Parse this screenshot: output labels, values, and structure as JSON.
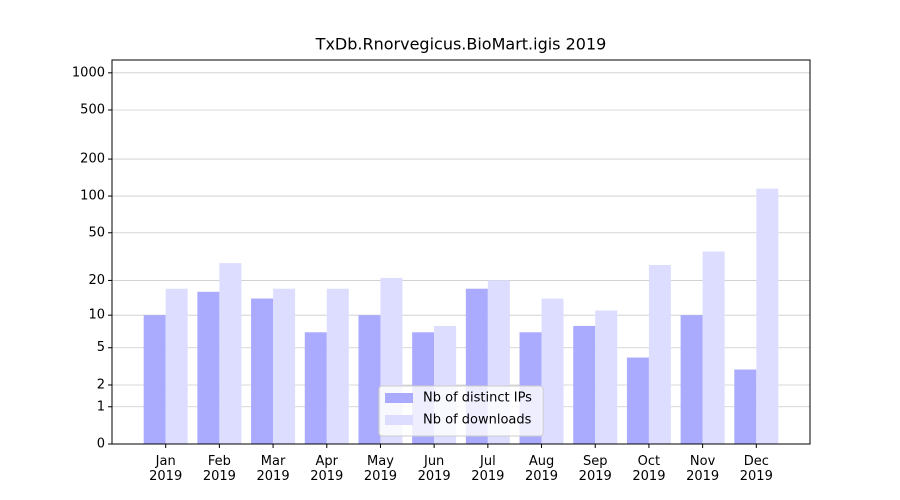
{
  "chart_data": {
    "type": "bar",
    "title": "TxDb.Rnorvegicus.BioMart.igis 2019",
    "categories": [
      "Jan\n2019",
      "Feb\n2019",
      "Mar\n2019",
      "Apr\n2019",
      "May\n2019",
      "Jun\n2019",
      "Jul\n2019",
      "Aug\n2019",
      "Sep\n2019",
      "Oct\n2019",
      "Nov\n2019",
      "Dec\n2019"
    ],
    "series": [
      {
        "name": "Nb of distinct IPs",
        "color": "#aaaaff",
        "values": [
          10,
          16,
          14,
          7,
          10,
          7,
          17,
          7,
          8,
          4,
          10,
          3
        ]
      },
      {
        "name": "Nb of downloads",
        "color": "#ddddff",
        "values": [
          17,
          28,
          17,
          17,
          21,
          8,
          20,
          14,
          11,
          27,
          35,
          115
        ]
      }
    ],
    "yscale": "log1p",
    "ylim": [
      0,
      1270
    ],
    "yticks": [
      0,
      1,
      2,
      5,
      10,
      20,
      50,
      100,
      200,
      500,
      1000
    ],
    "grid": true,
    "legend": "lower center"
  }
}
